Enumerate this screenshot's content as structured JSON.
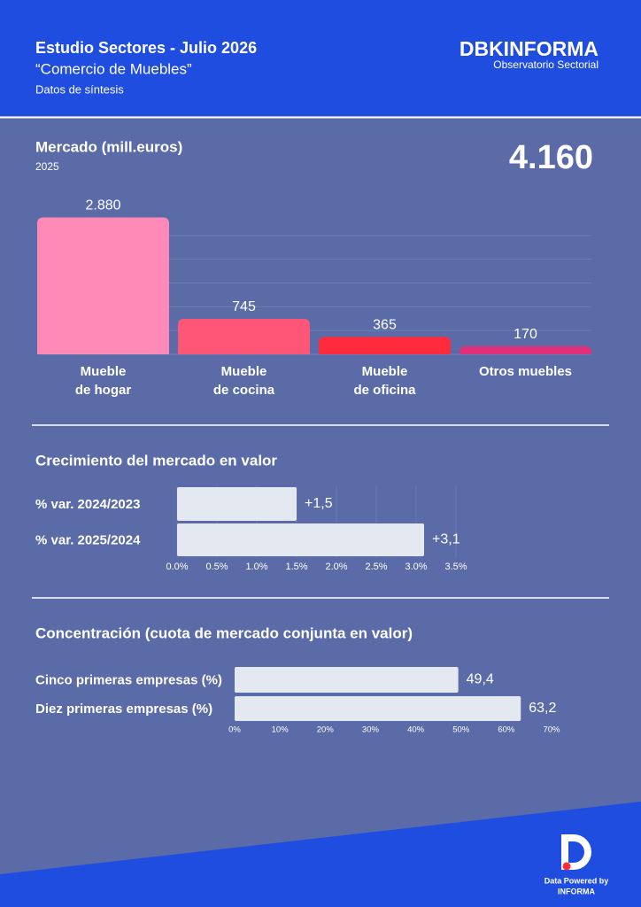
{
  "header": {
    "title": "Estudio Sectores - Julio 2026",
    "subtitle": "“Comercio de Muebles”",
    "note": "Datos de síntesis",
    "brand": "DBKINFORMA",
    "brand_sub": "Observatorio Sectorial"
  },
  "chart_data": [
    {
      "type": "bar",
      "title": "Mercado (mill.euros)",
      "subtitle": "2025",
      "total": {
        "value": 4160,
        "label": "4.160"
      },
      "categories": [
        "Mueble\nde hogar",
        "Mueble\nde cocina",
        "Mueble\nde oficina",
        "Otros muebles"
      ],
      "values": [
        2880,
        745,
        365,
        170
      ],
      "value_labels": [
        "2.880",
        "745",
        "365",
        "170"
      ],
      "colors": [
        "#ff8ab8",
        "#ff5577",
        "#ff2a3c",
        "#e0307a"
      ],
      "ylim": [
        0,
        3000
      ],
      "yticks": [
        0,
        500,
        1000,
        1500,
        2000,
        2500
      ],
      "grid": true
    },
    {
      "type": "bar",
      "orientation": "horizontal",
      "title": "Crecimiento del mercado en valor",
      "categories": [
        "% var. 2024/2023",
        "% var. 2025/2024"
      ],
      "values": [
        1.5,
        3.1
      ],
      "value_labels": [
        "+1,5",
        "+3,1"
      ],
      "color": "#e4e9f1",
      "xlim": [
        0,
        3.5
      ],
      "xticks": [
        {
          "value": 0,
          "label": "0.0%"
        },
        {
          "value": 0.5,
          "label": "0.5%"
        },
        {
          "value": 1,
          "label": "1.0%"
        },
        {
          "value": 1.5,
          "label": "1.5%"
        },
        {
          "value": 2,
          "label": "2.0%"
        },
        {
          "value": 2.5,
          "label": "2.5%"
        },
        {
          "value": 3,
          "label": "3.0%"
        },
        {
          "value": 3.5,
          "label": "3.5%"
        }
      ],
      "grid": true
    },
    {
      "type": "bar",
      "orientation": "horizontal",
      "title": "Concentración (cuota de mercado conjunta en valor)",
      "categories": [
        "Cinco primeras empresas (%)",
        "Diez primeras empresas (%)"
      ],
      "values": [
        49.4,
        63.2
      ],
      "value_labels": [
        "49,4",
        "63,2"
      ],
      "color": "#e4e9f1",
      "xlim": [
        0,
        70
      ],
      "xticks": [
        {
          "value": 0,
          "label": "0%"
        },
        {
          "value": 10,
          "label": "10%"
        },
        {
          "value": 20,
          "label": "20%"
        },
        {
          "value": 30,
          "label": "30%"
        },
        {
          "value": 40,
          "label": "40%"
        },
        {
          "value": 50,
          "label": "50%"
        },
        {
          "value": 60,
          "label": "60%"
        },
        {
          "value": 70,
          "label": "70%"
        }
      ],
      "grid": false
    }
  ],
  "footer": {
    "powered": "Data Powered by",
    "brand": "INFORMA"
  }
}
